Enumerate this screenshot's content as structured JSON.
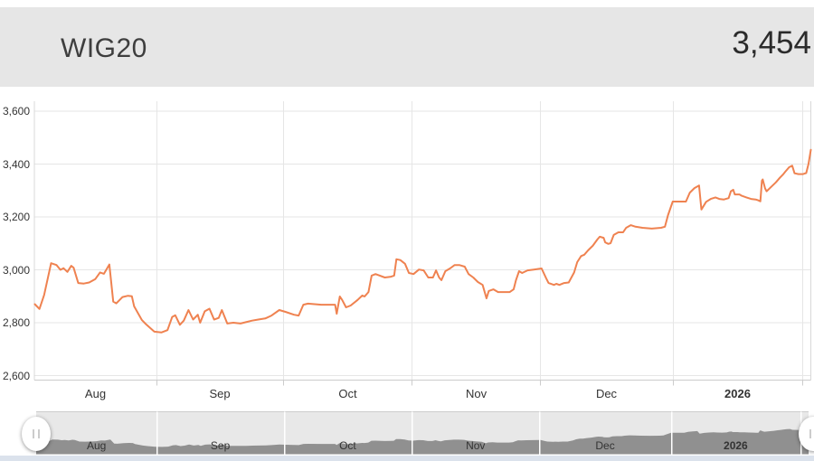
{
  "header": {
    "title": "WIG20",
    "value": "3,454"
  },
  "colors": {
    "header_bg": "#e6e6e6",
    "line": "#ef8250",
    "grid": "#e6e6e6",
    "plot_border": "#d8d8d8",
    "axis_line": "#cccccc",
    "axis_text": "#333333",
    "nav_bg": "#e8e8e8",
    "nav_fill": "#909090",
    "nav_separator": "#ffffff",
    "scrollbar_track": "#dbe2ec"
  },
  "chart_data": {
    "type": "line",
    "title": "WIG20",
    "current_value": 3454,
    "ylim": [
      2600,
      3600
    ],
    "grid": true,
    "legend": "none",
    "y_ticks": [
      {
        "v": 3600,
        "label": "3,600"
      },
      {
        "v": 3400,
        "label": "3,400"
      },
      {
        "v": 3200,
        "label": "3,200"
      },
      {
        "v": 3000,
        "label": "3,000"
      },
      {
        "v": 2800,
        "label": "2,800"
      },
      {
        "v": 2600,
        "label": "2,600"
      }
    ],
    "x_gridlines_t": [
      0.1562,
      0.3205,
      0.486,
      0.6515,
      0.8217,
      0.9895
    ],
    "x_labels": [
      {
        "label": "Aug",
        "t": 0.0781,
        "bold": false
      },
      {
        "label": "Sep",
        "t": 0.2384,
        "bold": false
      },
      {
        "label": "Oct",
        "t": 0.4033,
        "bold": false
      },
      {
        "label": "Nov",
        "t": 0.5688,
        "bold": false
      },
      {
        "label": "Dec",
        "t": 0.7366,
        "bold": false
      },
      {
        "label": "2026",
        "t": 0.9056,
        "bold": true
      }
    ],
    "series": [
      {
        "name": "WIG20",
        "points": [
          [
            0,
            2870
          ],
          [
            0.006,
            2852
          ],
          [
            0.012,
            2905
          ],
          [
            0.021,
            3025
          ],
          [
            0.028,
            3018
          ],
          [
            0.033,
            3000
          ],
          [
            0.037,
            3006
          ],
          [
            0.042,
            2992
          ],
          [
            0.047,
            3015
          ],
          [
            0.05,
            3008
          ],
          [
            0.056,
            2950
          ],
          [
            0.063,
            2948
          ],
          [
            0.07,
            2952
          ],
          [
            0.078,
            2965
          ],
          [
            0.084,
            2990
          ],
          [
            0.089,
            2985
          ],
          [
            0.096,
            3020
          ],
          [
            0.101,
            2880
          ],
          [
            0.105,
            2873
          ],
          [
            0.113,
            2897
          ],
          [
            0.12,
            2902
          ],
          [
            0.125,
            2900
          ],
          [
            0.128,
            2862
          ],
          [
            0.138,
            2810
          ],
          [
            0.143,
            2795
          ],
          [
            0.154,
            2766
          ],
          [
            0.163,
            2763
          ],
          [
            0.171,
            2772
          ],
          [
            0.177,
            2822
          ],
          [
            0.181,
            2828
          ],
          [
            0.187,
            2792
          ],
          [
            0.192,
            2808
          ],
          [
            0.198,
            2848
          ],
          [
            0.204,
            2812
          ],
          [
            0.21,
            2830
          ],
          [
            0.213,
            2800
          ],
          [
            0.219,
            2843
          ],
          [
            0.225,
            2853
          ],
          [
            0.231,
            2812
          ],
          [
            0.237,
            2818
          ],
          [
            0.241,
            2848
          ],
          [
            0.248,
            2797
          ],
          [
            0.256,
            2800
          ],
          [
            0.265,
            2797
          ],
          [
            0.272,
            2802
          ],
          [
            0.28,
            2808
          ],
          [
            0.288,
            2812
          ],
          [
            0.297,
            2816
          ],
          [
            0.305,
            2827
          ],
          [
            0.315,
            2848
          ],
          [
            0.323,
            2841
          ],
          [
            0.334,
            2830
          ],
          [
            0.34,
            2827
          ],
          [
            0.346,
            2868
          ],
          [
            0.352,
            2872
          ],
          [
            0.369,
            2868
          ],
          [
            0.387,
            2868
          ],
          [
            0.389,
            2834
          ],
          [
            0.393,
            2899
          ],
          [
            0.396,
            2886
          ],
          [
            0.401,
            2858
          ],
          [
            0.407,
            2865
          ],
          [
            0.416,
            2886
          ],
          [
            0.422,
            2903
          ],
          [
            0.425,
            2899
          ],
          [
            0.43,
            2916
          ],
          [
            0.434,
            2978
          ],
          [
            0.439,
            2984
          ],
          [
            0.451,
            2971
          ],
          [
            0.459,
            2974
          ],
          [
            0.463,
            2978
          ],
          [
            0.466,
            3040
          ],
          [
            0.471,
            3037
          ],
          [
            0.477,
            3023
          ],
          [
            0.482,
            2988
          ],
          [
            0.488,
            2984
          ],
          [
            0.495,
            3001
          ],
          [
            0.501,
            2998
          ],
          [
            0.507,
            2971
          ],
          [
            0.513,
            2971
          ],
          [
            0.517,
            2998
          ],
          [
            0.521,
            2971
          ],
          [
            0.524,
            2961
          ],
          [
            0.529,
            2995
          ],
          [
            0.535,
            3005
          ],
          [
            0.541,
            3018
          ],
          [
            0.547,
            3018
          ],
          [
            0.554,
            3012
          ],
          [
            0.559,
            2984
          ],
          [
            0.565,
            2971
          ],
          [
            0.571,
            2954
          ],
          [
            0.577,
            2943
          ],
          [
            0.582,
            2892
          ],
          [
            0.585,
            2920
          ],
          [
            0.591,
            2926
          ],
          [
            0.597,
            2916
          ],
          [
            0.612,
            2916
          ],
          [
            0.617,
            2926
          ],
          [
            0.62,
            2961
          ],
          [
            0.624,
            2995
          ],
          [
            0.628,
            2988
          ],
          [
            0.635,
            2998
          ],
          [
            0.643,
            3001
          ],
          [
            0.653,
            3005
          ],
          [
            0.659,
            2968
          ],
          [
            0.662,
            2950
          ],
          [
            0.669,
            2943
          ],
          [
            0.672,
            2947
          ],
          [
            0.676,
            2943
          ],
          [
            0.682,
            2950
          ],
          [
            0.688,
            2952
          ],
          [
            0.695,
            2990
          ],
          [
            0.699,
            3029
          ],
          [
            0.704,
            3052
          ],
          [
            0.708,
            3057
          ],
          [
            0.713,
            3074
          ],
          [
            0.719,
            3091
          ],
          [
            0.725,
            3115
          ],
          [
            0.728,
            3125
          ],
          [
            0.733,
            3121
          ],
          [
            0.735,
            3104
          ],
          [
            0.739,
            3098
          ],
          [
            0.742,
            3101
          ],
          [
            0.746,
            3132
          ],
          [
            0.752,
            3142
          ],
          [
            0.758,
            3142
          ],
          [
            0.762,
            3159
          ],
          [
            0.768,
            3169
          ],
          [
            0.774,
            3163
          ],
          [
            0.783,
            3159
          ],
          [
            0.795,
            3156
          ],
          [
            0.807,
            3159
          ],
          [
            0.812,
            3163
          ],
          [
            0.816,
            3207
          ],
          [
            0.822,
            3258
          ],
          [
            0.833,
            3258
          ],
          [
            0.839,
            3258
          ],
          [
            0.844,
            3292
          ],
          [
            0.85,
            3309
          ],
          [
            0.856,
            3319
          ],
          [
            0.859,
            3228
          ],
          [
            0.865,
            3257
          ],
          [
            0.871,
            3268
          ],
          [
            0.877,
            3274
          ],
          [
            0.882,
            3268
          ],
          [
            0.888,
            3266
          ],
          [
            0.894,
            3271
          ],
          [
            0.897,
            3297
          ],
          [
            0.9,
            3303
          ],
          [
            0.902,
            3285
          ],
          [
            0.908,
            3285
          ],
          [
            0.911,
            3280
          ],
          [
            0.917,
            3274
          ],
          [
            0.923,
            3268
          ],
          [
            0.929,
            3266
          ],
          [
            0.932,
            3263
          ],
          [
            0.935,
            3259
          ],
          [
            0.937,
            3337
          ],
          [
            0.938,
            3342
          ],
          [
            0.941,
            3308
          ],
          [
            0.943,
            3297
          ],
          [
            0.949,
            3314
          ],
          [
            0.955,
            3331
          ],
          [
            0.96,
            3348
          ],
          [
            0.964,
            3360
          ],
          [
            0.967,
            3371
          ],
          [
            0.972,
            3388
          ],
          [
            0.976,
            3394
          ],
          [
            0.979,
            3365
          ],
          [
            0.984,
            3362
          ],
          [
            0.99,
            3362
          ],
          [
            0.994,
            3366
          ],
          [
            0.997,
            3400
          ],
          [
            1,
            3454
          ]
        ]
      }
    ]
  },
  "navigator": {
    "months": [
      {
        "label": "Aug",
        "t": 0.0781,
        "bold": false
      },
      {
        "label": "Sep",
        "t": 0.2384,
        "bold": false
      },
      {
        "label": "Oct",
        "t": 0.4033,
        "bold": false
      },
      {
        "label": "Nov",
        "t": 0.5688,
        "bold": false
      },
      {
        "label": "Dec",
        "t": 0.7366,
        "bold": false
      },
      {
        "label": "2026",
        "t": 0.9056,
        "bold": true
      }
    ],
    "separators_t": [
      0.1562,
      0.3205,
      0.486,
      0.6515,
      0.8217,
      0.9895
    ],
    "vrange": [
      2760,
      3460
    ]
  }
}
